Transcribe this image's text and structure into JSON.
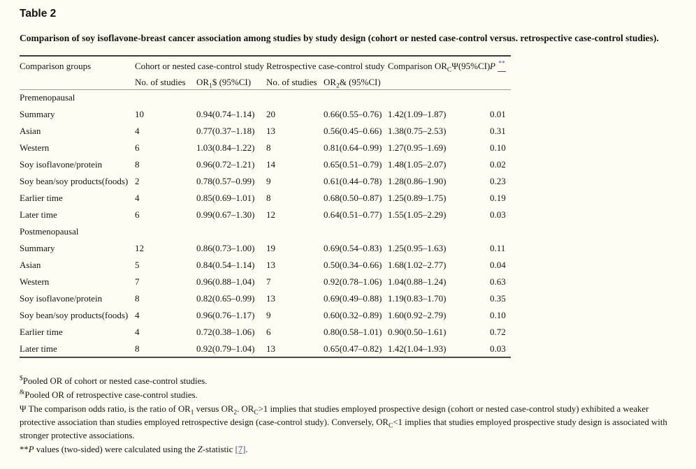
{
  "colors": {
    "background": "#fffdf2",
    "link_blue": "#3b4ca6",
    "rule_dark": "#3c3c3c",
    "rule_light": "#9a9a9a"
  },
  "page": {
    "title": "Table 2",
    "caption": "Comparison of soy isoflavone-breast cancer association among studies by study design (cohort or nested case-control versus. retrospective case-control studies)."
  },
  "table": {
    "headers": {
      "comparison_groups": "Comparison groups",
      "cohort_group": "Cohort or nested case-control study",
      "retro_group": "Retrospective case-control study",
      "no_of_studies": "No. of studies",
      "or1": [
        {
          "text": "OR"
        },
        {
          "sub": "1"
        },
        {
          "text": "$ (95%CI)"
        }
      ],
      "or2": [
        {
          "text": "OR"
        },
        {
          "sub": "2"
        },
        {
          "text": "& (95%CI)"
        }
      ],
      "comparison_or": [
        {
          "text": "Comparison OR"
        },
        {
          "sub": "C"
        },
        {
          "text": "Ψ(95%CI)"
        }
      ],
      "p": [
        {
          "italic": "P"
        },
        {
          "text": " "
        },
        {
          "sup_link": "**"
        }
      ]
    },
    "sections": [
      {
        "label": "Premenopausal",
        "rows": [
          {
            "group": "Summary",
            "n1": "10",
            "or1": "0.94(0.74–1.14)",
            "n2": "20",
            "or2": "0.66(0.55–0.76)",
            "orc": "1.42(1.09–1.87)",
            "p": "0.01"
          },
          {
            "group": "Asian",
            "n1": "4",
            "or1": "0.77(0.37–1.18)",
            "n2": "13",
            "or2": "0.56(0.45–0.66)",
            "orc": "1.38(0.75–2.53)",
            "p": "0.31"
          },
          {
            "group": "Western",
            "n1": "6",
            "or1": "1.03(0.84–1.22)",
            "n2": "8",
            "or2": "0.81(0.64–0.99)",
            "orc": "1.27(0.95–1.69)",
            "p": "0.10"
          },
          {
            "group": "Soy isoflavone/protein",
            "n1": "8",
            "or1": "0.96(0.72–1.21)",
            "n2": "14",
            "or2": "0.65(0.51–0.79)",
            "orc": "1.48(1.05–2.07)",
            "p": "0.02"
          },
          {
            "group": "Soy bean/soy products(foods)",
            "n1": "2",
            "or1": "0.78(0.57–0.99)",
            "n2": "9",
            "or2": "0.61(0.44–0.78)",
            "orc": "1.28(0.86–1.90)",
            "p": "0.23"
          },
          {
            "group": "Earlier time",
            "n1": "4",
            "or1": "0.85(0.69–1.01)",
            "n2": "8",
            "or2": "0.68(0.50–0.87)",
            "orc": "1.25(0.89–1.75)",
            "p": "0.19"
          },
          {
            "group": "Later time",
            "n1": "6",
            "or1": "0.99(0.67–1.30)",
            "n2": "12",
            "or2": "0.64(0.51–0.77)",
            "orc": "1.55(1.05–2.29)",
            "p": "0.03"
          }
        ]
      },
      {
        "label": "Postmenopausal",
        "rows": [
          {
            "group": "Summary",
            "n1": "12",
            "or1": "0.86(0.73–1.00)",
            "n2": "19",
            "or2": "0.69(0.54–0.83)",
            "orc": "1.25(0.95–1.63)",
            "p": "0.11"
          },
          {
            "group": "Asian",
            "n1": "5",
            "or1": "0.84(0.54–1.14)",
            "n2": "13",
            "or2": "0.50(0.34–0.66)",
            "orc": "1.68(1.02–2.77)",
            "p": "0.04"
          },
          {
            "group": "Western",
            "n1": "7",
            "or1": "0.96(0.88–1.04)",
            "n2": "7",
            "or2": "0.92(0.78–1.06)",
            "orc": "1.04(0.88–1.24)",
            "p": "0.63"
          },
          {
            "group": "Soy isoflavone/protein",
            "n1": "8",
            "or1": "0.82(0.65–0.99)",
            "n2": "13",
            "or2": "0.69(0.49–0.88)",
            "orc": "1.19(0.83–1.70)",
            "p": "0.35"
          },
          {
            "group": "Soy bean/soy products(foods)",
            "n1": "4",
            "or1": "0.96(0.76–1.17)",
            "n2": "9",
            "or2": "0.60(0.32–0.89)",
            "orc": "1.60(0.92–2.79)",
            "p": "0.10"
          },
          {
            "group": "Earlier time",
            "n1": "4",
            "or1": "0.72(0.38–1.06)",
            "n2": "6",
            "or2": "0.80(0.58–1.01)",
            "orc": "0.90(0.50–1.61)",
            "p": "0.72"
          },
          {
            "group": "Later time",
            "n1": "8",
            "or1": "0.92(0.79–1.04)",
            "n2": "13",
            "or2": "0.65(0.47–0.82)",
            "orc": "1.42(1.04–1.93)",
            "p": "0.03"
          }
        ]
      }
    ]
  },
  "footnotes": [
    {
      "segments": [
        {
          "sup": "$"
        },
        {
          "text": "Pooled OR of cohort or nested case-control studies."
        }
      ]
    },
    {
      "segments": [
        {
          "sup": "&"
        },
        {
          "text": "Pooled OR of retrospective case-control studies."
        }
      ]
    },
    {
      "segments": [
        {
          "text": "Ψ The comparison odds ratio, is the ratio of OR"
        },
        {
          "sub": "1"
        },
        {
          "text": " versus OR"
        },
        {
          "sub": "2"
        },
        {
          "text": ". OR"
        },
        {
          "sub": "C"
        },
        {
          "text": ">1 implies that studies employed prospective design (cohort or nested case-control study) exhibited a weaker protective association than studies employed retrospective design (case-control study). Conversely, OR"
        },
        {
          "sub": "C"
        },
        {
          "text": "<1 implies that studies employed prospective study design is associated with stronger protective associations."
        }
      ]
    },
    {
      "segments": [
        {
          "text": "**"
        },
        {
          "italic": "P"
        },
        {
          "text": " values (two-sided) were calculated using the "
        },
        {
          "italic": "Z"
        },
        {
          "text": "-statistic "
        },
        {
          "link": "[7]"
        },
        {
          "text": "."
        }
      ]
    }
  ]
}
